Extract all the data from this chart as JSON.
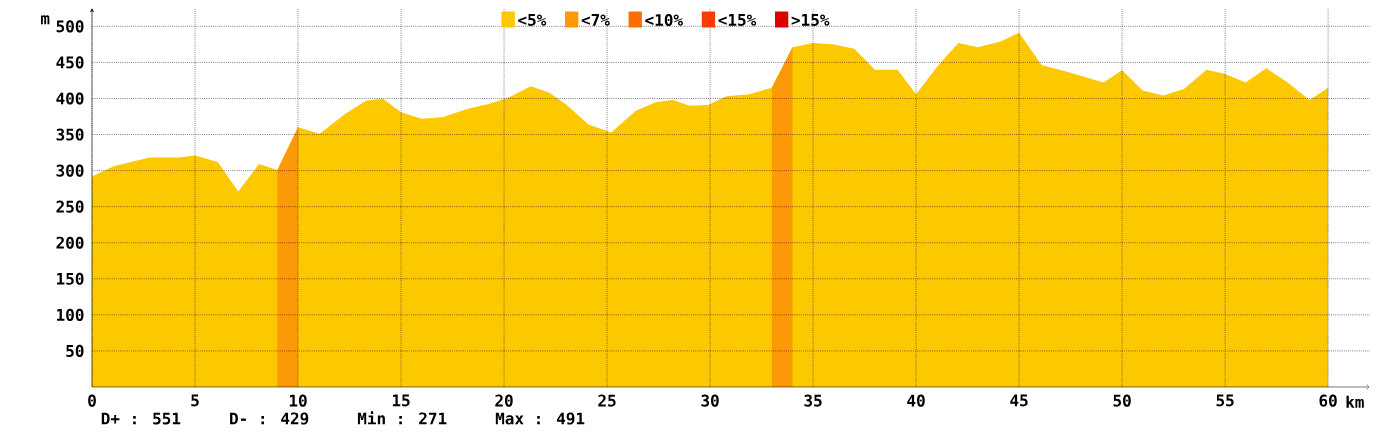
{
  "chart_data": {
    "type": "area",
    "xlabel": "km",
    "ylabel": "m",
    "xlim": [
      0,
      62
    ],
    "ylim": [
      0,
      525
    ],
    "xticks": [
      0,
      5,
      10,
      15,
      20,
      25,
      30,
      35,
      40,
      45,
      50,
      55,
      60
    ],
    "yticks": [
      50,
      100,
      150,
      200,
      250,
      300,
      350,
      400,
      450,
      500
    ],
    "grid": true,
    "legend": "top",
    "series": [
      {
        "name": "<5%",
        "color": "#fcc800",
        "x": [
          0,
          1.05,
          2.8,
          3.35,
          4.2,
          5,
          6.1,
          7.1,
          8.1,
          9,
          10,
          11.05,
          12.3,
          13.3,
          14.1,
          15,
          16,
          17,
          18.3,
          19.2,
          20.2,
          21.3,
          22.2,
          23,
          24.1,
          25.2,
          26.4,
          27.4,
          28.2,
          29,
          29.9,
          30.8,
          31.9,
          33,
          34,
          35,
          36,
          37,
          38,
          39.1,
          40,
          41.05,
          42.05,
          43,
          44.1,
          45,
          46.1,
          47.2,
          49.1,
          50,
          51,
          52,
          53,
          54.1,
          55,
          56,
          57,
          58,
          59.1,
          60
        ],
        "values": [
          292,
          306,
          318,
          318,
          318,
          321,
          312,
          271,
          309,
          301,
          360,
          351,
          379,
          397,
          400,
          381,
          372,
          374,
          386,
          392,
          401,
          417,
          408,
          392,
          364,
          353,
          383,
          395,
          398,
          390,
          391,
          403,
          406,
          415,
          471,
          477,
          475,
          469,
          440,
          440,
          406,
          445,
          477,
          471,
          479,
          491,
          446,
          438,
          422,
          439,
          411,
          404,
          413,
          440,
          434,
          422,
          442,
          423,
          398,
          415
        ]
      },
      {
        "name": "<7%",
        "color": "#fb9a06",
        "x": [
          9,
          10,
          20,
          33,
          34
        ],
        "values": [
          301,
          360,
          null,
          415,
          471
        ]
      },
      {
        "name": "<10%",
        "color": "#fc6d00"
      },
      {
        "name": "<15%",
        "color": "#fc3b00"
      },
      {
        "name": ">15%",
        "color": "#dc0000"
      }
    ],
    "annotations": [
      "D+ : 551",
      "D- : 429",
      "Min : 271",
      "Max : 491"
    ]
  }
}
